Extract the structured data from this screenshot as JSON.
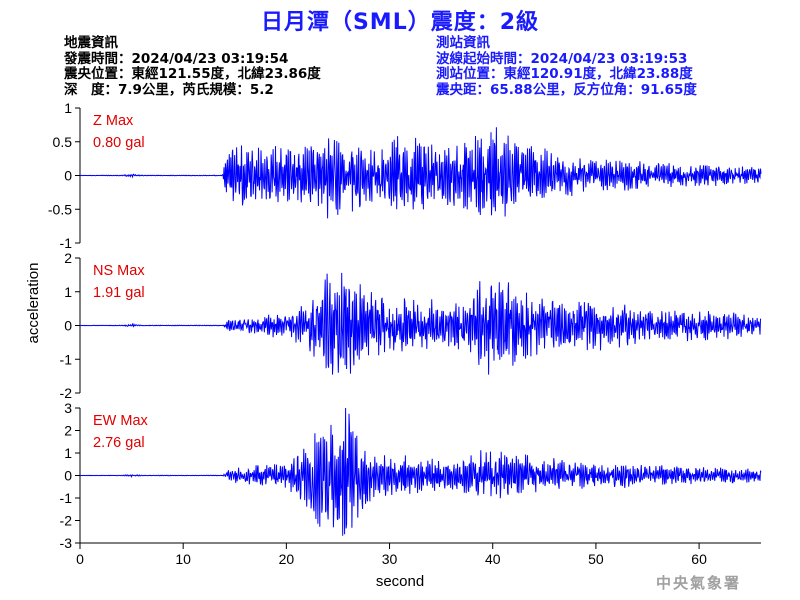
{
  "title": "日月潭（SML）震度：2級",
  "quake_info": {
    "heading": "地震資訊",
    "origin_time": "發震時間：2024/04/23 03:19:54",
    "epicenter": "震央位置：東經121.55度，北緯23.86度",
    "depth_magnitude": "深　度：7.9公里，芮氏規模：5.2"
  },
  "station_info": {
    "heading": "測站資訊",
    "wave_start": "波線起始時間：2024/04/23 03:19:53",
    "location": "測站位置：東經120.91度，北緯23.88度",
    "distance": "震央距：65.88公里，反方位角：91.65度"
  },
  "logo": "中央氣象署",
  "colors": {
    "title": "#1a1aff",
    "trace": "#0000ff",
    "label": "#e00000",
    "axis": "#000000"
  },
  "chart_data": [
    {
      "type": "line",
      "component": "Z",
      "label_name": "Z Max",
      "label_value": "0.80 gal",
      "max_amplitude": 0.8,
      "ylim": [
        -1,
        1
      ],
      "yticks": [
        -1,
        -0.5,
        0,
        0.5,
        1
      ],
      "ytick_labels": [
        "-1",
        "-0.5",
        "0",
        "0.5",
        "1"
      ],
      "envelope": [
        [
          0,
          0.002
        ],
        [
          4,
          0.004
        ],
        [
          5,
          0.02
        ],
        [
          6,
          0.004
        ],
        [
          13.8,
          0.004
        ],
        [
          14.2,
          0.3
        ],
        [
          15,
          0.45
        ],
        [
          17,
          0.35
        ],
        [
          19,
          0.45
        ],
        [
          21,
          0.4
        ],
        [
          23,
          0.5
        ],
        [
          24.5,
          0.55
        ],
        [
          26,
          0.5
        ],
        [
          28,
          0.4
        ],
        [
          30,
          0.45
        ],
        [
          32,
          0.55
        ],
        [
          34,
          0.45
        ],
        [
          36,
          0.4
        ],
        [
          38,
          0.5
        ],
        [
          40,
          0.65
        ],
        [
          41.5,
          0.55
        ],
        [
          43,
          0.45
        ],
        [
          45,
          0.35
        ],
        [
          48,
          0.25
        ],
        [
          52,
          0.2
        ],
        [
          56,
          0.17
        ],
        [
          60,
          0.14
        ],
        [
          64,
          0.12
        ],
        [
          66,
          0.1
        ]
      ]
    },
    {
      "type": "line",
      "component": "NS",
      "label_name": "NS Max",
      "label_value": "1.91 gal",
      "max_amplitude": 1.91,
      "ylim": [
        -2,
        2
      ],
      "yticks": [
        -2,
        -1,
        0,
        1,
        2
      ],
      "ytick_labels": [
        "-2",
        "-1",
        "0",
        "1",
        "2"
      ],
      "envelope": [
        [
          0,
          0.004
        ],
        [
          4,
          0.008
        ],
        [
          5,
          0.04
        ],
        [
          6,
          0.008
        ],
        [
          13.8,
          0.008
        ],
        [
          14.5,
          0.15
        ],
        [
          17,
          0.25
        ],
        [
          20,
          0.35
        ],
        [
          22,
          0.6
        ],
        [
          23,
          1.1
        ],
        [
          24.5,
          1.5
        ],
        [
          26,
          1.3
        ],
        [
          28,
          0.9
        ],
        [
          30,
          0.8
        ],
        [
          32,
          0.7
        ],
        [
          34,
          0.75
        ],
        [
          36,
          0.55
        ],
        [
          38,
          0.9
        ],
        [
          40,
          1.5
        ],
        [
          41,
          1.3
        ],
        [
          43,
          0.9
        ],
        [
          46,
          0.75
        ],
        [
          48,
          0.6
        ],
        [
          50,
          0.65
        ],
        [
          53,
          0.55
        ],
        [
          56,
          0.4
        ],
        [
          60,
          0.4
        ],
        [
          63,
          0.35
        ],
        [
          66,
          0.25
        ]
      ]
    },
    {
      "type": "line",
      "component": "EW",
      "label_name": "EW Max",
      "label_value": "2.76 gal",
      "max_amplitude": 2.76,
      "ylim": [
        -3,
        3
      ],
      "yticks": [
        -3,
        -2,
        -1,
        0,
        1,
        2,
        3
      ],
      "ytick_labels": [
        "-3",
        "-2",
        "-1",
        "0",
        "1",
        "2",
        "3"
      ],
      "envelope": [
        [
          0,
          0.005
        ],
        [
          4,
          0.01
        ],
        [
          5,
          0.05
        ],
        [
          6,
          0.01
        ],
        [
          13.8,
          0.01
        ],
        [
          14.5,
          0.25
        ],
        [
          17,
          0.4
        ],
        [
          20,
          0.55
        ],
        [
          22,
          1.2
        ],
        [
          23,
          2.0
        ],
        [
          24.5,
          2.3
        ],
        [
          25.8,
          2.7
        ],
        [
          27,
          1.8
        ],
        [
          29,
          0.9
        ],
        [
          31,
          0.8
        ],
        [
          33,
          0.7
        ],
        [
          35,
          0.6
        ],
        [
          37,
          0.75
        ],
        [
          39,
          1.0
        ],
        [
          40,
          1.1
        ],
        [
          42,
          0.95
        ],
        [
          44,
          0.7
        ],
        [
          46,
          0.65
        ],
        [
          48,
          0.5
        ],
        [
          52,
          0.5
        ],
        [
          56,
          0.4
        ],
        [
          60,
          0.35
        ],
        [
          63,
          0.3
        ],
        [
          66,
          0.25
        ]
      ]
    }
  ],
  "x_axis": {
    "label": "second",
    "xlim": [
      0,
      66
    ],
    "ticks": [
      0,
      10,
      20,
      30,
      40,
      50,
      60
    ],
    "tick_labels": [
      "0",
      "10",
      "20",
      "30",
      "40",
      "50",
      "60"
    ]
  },
  "y_axis_label": "acceleration"
}
